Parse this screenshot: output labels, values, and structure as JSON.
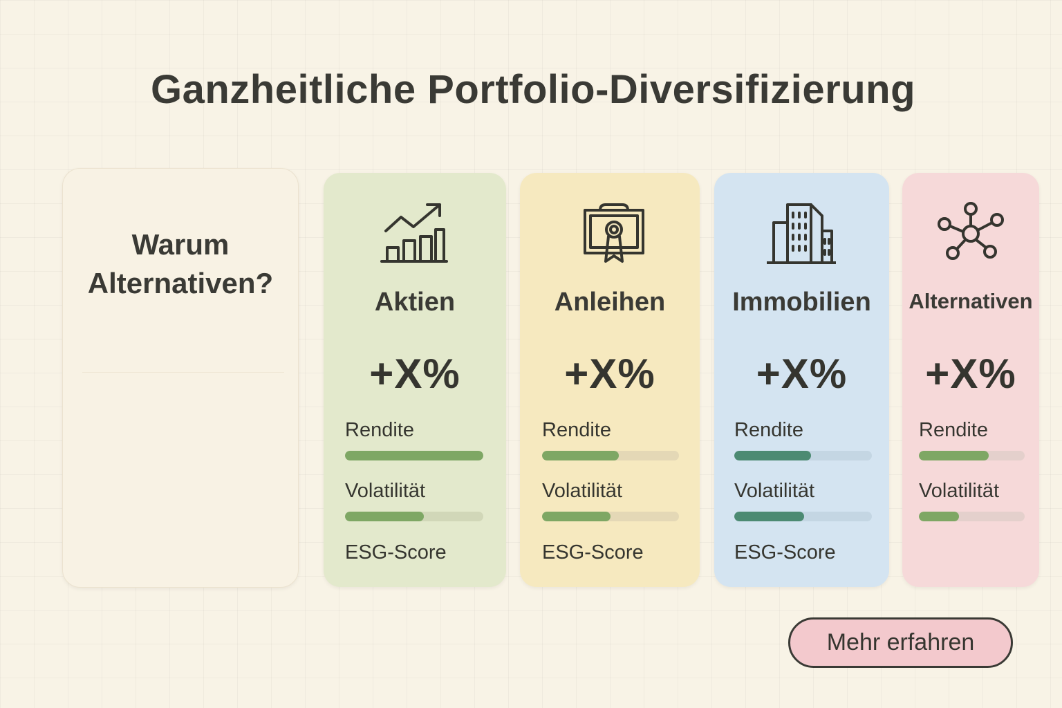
{
  "page": {
    "title": "Ganzheitliche Portfolio-Diversifizierung",
    "background": "#f8f3e6"
  },
  "intro": {
    "title_line1": "Warum",
    "title_line2": "Alternativen?"
  },
  "cards": [
    {
      "title": "Aktien",
      "value": "+X%",
      "icon": "growth-chart-icon",
      "bg": "#e3e9cc",
      "bar_color": "#7ea764",
      "track_color": "#d1d7b8",
      "metrics": [
        {
          "label": "Rendite",
          "level": 1.0
        },
        {
          "label": "Volatilität",
          "level": 0.57
        },
        {
          "label": "ESG-Score"
        }
      ]
    },
    {
      "title": "Anleihen",
      "value": "+X%",
      "icon": "certificate-icon",
      "bg": "#f6e9bf",
      "bar_color": "#7ea764",
      "track_color": "#e4d8b6",
      "metrics": [
        {
          "label": "Rendite",
          "level": 0.56
        },
        {
          "label": "Volatilität",
          "level": 0.5
        },
        {
          "label": "ESG-Score"
        }
      ]
    },
    {
      "title": "Immobilien",
      "value": "+X%",
      "icon": "building-icon",
      "bg": "#d4e4f1",
      "bar_color": "#4c8a72",
      "track_color": "#c4d6e3",
      "metrics": [
        {
          "label": "Rendite",
          "level": 0.56
        },
        {
          "label": "Volatilität",
          "level": 0.51
        },
        {
          "label": "ESG-Score"
        }
      ]
    },
    {
      "title": "Alternativen",
      "value": "+X%",
      "icon": "network-icon",
      "bg": "#f6d9d9",
      "bar_color": "#7ea764",
      "track_color": "#e4d0cc",
      "metrics": [
        {
          "label": "Rendite",
          "level": 0.66
        },
        {
          "label": "Volatilität",
          "level": 0.38
        }
      ]
    }
  ],
  "cta": {
    "label": "Mehr erfahren",
    "color": "#f3c9cd"
  }
}
